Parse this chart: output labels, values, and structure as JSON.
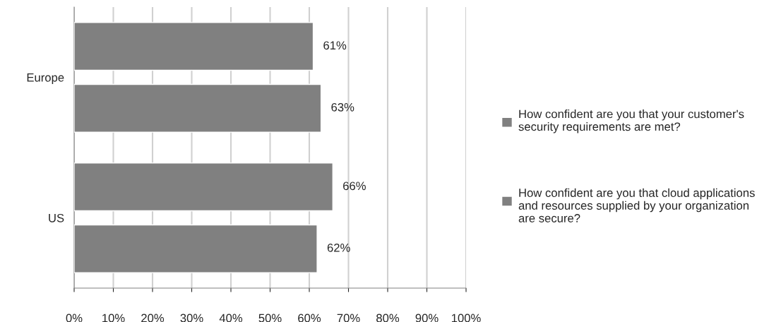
{
  "chart_data": {
    "type": "bar",
    "orientation": "horizontal",
    "categories": [
      "Europe",
      "US"
    ],
    "series": [
      {
        "name": "How confident are you that your customer's security requirements are met?",
        "color": "#808080",
        "values": [
          61,
          66
        ],
        "value_labels": [
          "61%",
          "66%"
        ]
      },
      {
        "name": "How confident are you that cloud applications and resources supplied by your organization are secure?",
        "color": "#808080",
        "values": [
          63,
          62
        ],
        "value_labels": [
          "63%",
          "62%"
        ]
      }
    ],
    "xlim": [
      0,
      100
    ],
    "xticks": [
      {
        "value": 0,
        "label": "0%"
      },
      {
        "value": 10,
        "label": "10%"
      },
      {
        "value": 20,
        "label": "20%"
      },
      {
        "value": 30,
        "label": "30%"
      },
      {
        "value": 40,
        "label": "40%"
      },
      {
        "value": 50,
        "label": "50%"
      },
      {
        "value": 60,
        "label": "60%"
      },
      {
        "value": 70,
        "label": "70%"
      },
      {
        "value": 80,
        "label": "80%"
      },
      {
        "value": 90,
        "label": "90%"
      },
      {
        "value": 100,
        "label": "100%"
      }
    ],
    "grid": "x",
    "legend": "right"
  }
}
